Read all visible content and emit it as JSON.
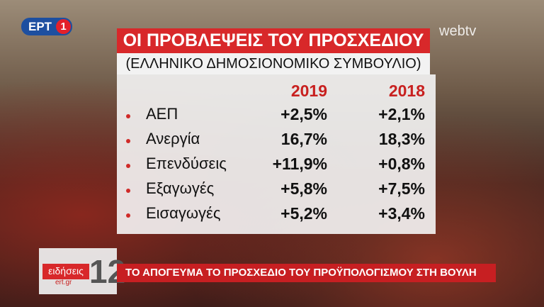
{
  "logo": {
    "channel": "ΕΡΤ",
    "number": "1"
  },
  "watermark": "webtv",
  "header": {
    "title": "ΟΙ ΠΡΟΒΛΕΨΕΙΣ ΤΟΥ ΠΡΟΣΧΕΔΙΟΥ",
    "subtitle": "(ΕΛΛΗΝΙΚΟ ΔΗΜΟΣΙΟΝΟΜΙΚΟ ΣΥΜΒΟΥΛΙΟ)"
  },
  "table": {
    "columns": [
      "2019",
      "2018"
    ],
    "rows": [
      [
        "ΑΕΠ",
        "+2,5%",
        "+2,1%"
      ],
      [
        "Ανεργία",
        "16,7%",
        "18,3%"
      ],
      [
        "Επενδύσεις",
        "+11,9%",
        "+0,8%"
      ],
      [
        "Εξαγωγές",
        "+5,8%",
        "+7,5%"
      ],
      [
        "Εισαγωγές",
        "+5,2%",
        "+3,4%"
      ]
    ]
  },
  "ticker": {
    "brand": "ειδήσεις",
    "site": "ert.gr",
    "hour": "12",
    "headline": "ΤΟ ΑΠΟΓΕΥΜΑ ΤΟ ΠΡΟΣΧΕΔΙΟ ΤΟΥ ΠΡΟΫΠΟΛΟΓΙΣΜΟΥ ΣΤΗ ΒΟΥΛΗ"
  }
}
